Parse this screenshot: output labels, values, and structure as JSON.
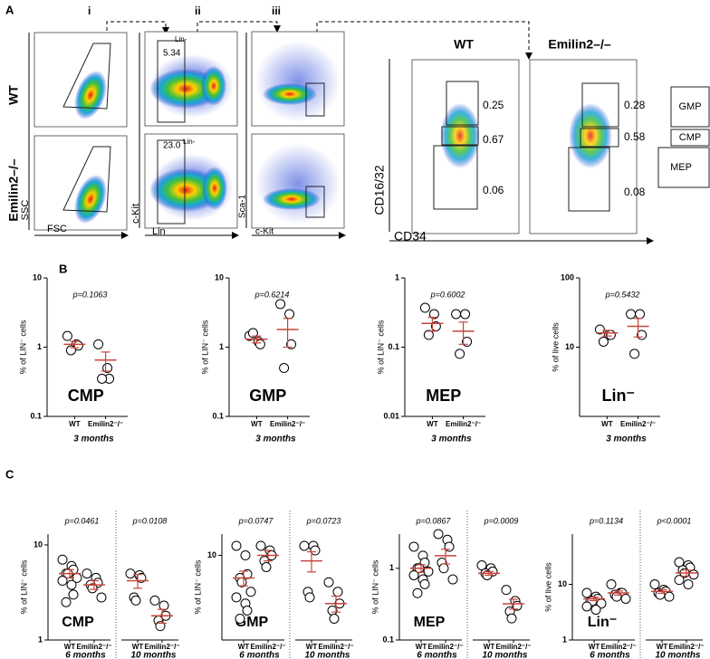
{
  "panel_a": {
    "label": "A",
    "steps": [
      "i",
      "ii",
      "iii"
    ],
    "rows": [
      "WT",
      "Emilin2–/–"
    ],
    "axes": {
      "ssc": "SSC",
      "fsc": "FSC",
      "ckit": "c-Kit",
      "lin": "Lin",
      "sca1": "Sca-1",
      "ckit2": "c-Kit",
      "cd1632": "CD16/32",
      "cd34": "CD34"
    },
    "lin_gate": [
      "Lin-",
      "Lin-"
    ],
    "lin_pct": [
      "5.34",
      "23.0"
    ],
    "columns": [
      "WT",
      "Emilin2–/–"
    ],
    "gates_wt": [
      "0.25",
      "0.67",
      "0.06"
    ],
    "gates_ko": [
      "0.28",
      "0.58",
      "0.08"
    ],
    "legend": [
      "GMP",
      "CMP",
      "MEP"
    ]
  },
  "panel_b_label": "B",
  "panel_c_label": "C",
  "chart_data": [
    {
      "type": "dot",
      "title": "CMP",
      "ylabel": "% of LIN⁻ cells",
      "log": true,
      "ylim": [
        0.1,
        10
      ],
      "yticks": [
        0.1,
        1,
        10
      ],
      "color": "#c8453b",
      "blocks": [
        {
          "p": "p=0.1063",
          "period": "3 months",
          "groups": [
            {
              "label": "WT",
              "values": [
                1.45,
                1.1,
                1.05,
                0.9
              ],
              "mean": 1.1,
              "sem": 0.12
            },
            {
              "label": "Emilin2⁻/⁻",
              "values": [
                1.1,
                0.5,
                0.35,
                0.35
              ],
              "mean": 0.65,
              "sem": 0.2
            }
          ]
        }
      ]
    },
    {
      "type": "dot",
      "title": "GMP",
      "ylabel": "% of LIN⁻ cells",
      "log": true,
      "ylim": [
        0.1,
        10
      ],
      "yticks": [
        0.1,
        1,
        10
      ],
      "color": "#c8453b",
      "blocks": [
        {
          "p": "p=0.6214",
          "period": "3 months",
          "groups": [
            {
              "label": "WT",
              "values": [
                1.45,
                1.2,
                1.1,
                1.6
              ],
              "mean": 1.3,
              "sem": 0.15
            },
            {
              "label": "Emilin2⁻/⁻",
              "values": [
                4.2,
                3,
                1.1,
                0.5
              ],
              "mean": 1.8,
              "sem": 0.8
            }
          ]
        }
      ]
    },
    {
      "type": "dot",
      "title": "MEP",
      "ylabel": "% of LIN⁻ cells",
      "log": true,
      "ylim": [
        0.01,
        1
      ],
      "yticks": [
        0.01,
        0.1,
        1
      ],
      "color": "#c8453b",
      "blocks": [
        {
          "p": "p=0.6002",
          "period": "3 months",
          "groups": [
            {
              "label": "WT",
              "values": [
                0.37,
                0.3,
                0.2,
                0.15
              ],
              "mean": 0.22,
              "sem": 0.05
            },
            {
              "label": "Emilin2⁻/⁻",
              "values": [
                0.3,
                0.3,
                0.12,
                0.08
              ],
              "mean": 0.17,
              "sem": 0.06
            }
          ]
        }
      ]
    },
    {
      "type": "dot",
      "title": "Lin⁻",
      "ylabel": "% of live cells",
      "log": true,
      "ylim": [
        1,
        100
      ],
      "yticks": [
        10,
        100
      ],
      "color": "#c8453b",
      "blocks": [
        {
          "p": "p=0.5432",
          "period": "3 months",
          "groups": [
            {
              "label": "WT",
              "values": [
                18,
                15,
                15,
                12
              ],
              "mean": 16,
              "sem": 1.5
            },
            {
              "label": "Emilin2⁻/⁻",
              "values": [
                30,
                30,
                15,
                8
              ],
              "mean": 20,
              "sem": 6
            }
          ]
        }
      ]
    },
    {
      "type": "dot",
      "title": "CMP",
      "ylabel": "% of LIN⁻ cells",
      "log": true,
      "ylim": [
        1,
        13
      ],
      "yticks": [
        1,
        10
      ],
      "color": "#c8453b",
      "blocks": [
        {
          "p": "p=0.0461",
          "period": "6 months",
          "groups": [
            {
              "label": "WT",
              "values": [
                7,
                6,
                5.5,
                5,
                5,
                4.5,
                4.2,
                3.8,
                3,
                2.5
              ],
              "mean": 5,
              "sem": 0.5
            },
            {
              "label": "Emilin2⁻/⁻",
              "values": [
                5,
                4.5,
                4,
                3.8,
                3.5,
                2.8
              ],
              "mean": 3.8,
              "sem": 0.4
            }
          ]
        },
        {
          "p": "p=0.0108",
          "period": "10 months",
          "groups": [
            {
              "label": "WT",
              "values": [
                5,
                4.8,
                4.5,
                2.8,
                2.6
              ],
              "mean": 4.2,
              "sem": 0.7
            },
            {
              "label": "Emilin2⁻/⁻",
              "values": [
                2.6,
                2.3,
                1.8,
                1.6,
                1.4
              ],
              "mean": 1.8,
              "sem": 0.3
            }
          ]
        }
      ]
    },
    {
      "type": "dot",
      "title": "GMP",
      "ylabel": "% of LIN⁻ cells",
      "log": true,
      "ylim": [
        2,
        15
      ],
      "yticks": [
        10
      ],
      "color": "#c8453b",
      "blocks": [
        {
          "p": "p=0.0747",
          "period": "6 months",
          "groups": [
            {
              "label": "WT",
              "values": [
                12,
                10,
                7,
                6.5,
                6,
                5,
                4.5,
                4,
                3.5,
                3
              ],
              "mean": 6.5,
              "sem": 0.9
            },
            {
              "label": "Emilin2⁻/⁻",
              "values": [
                12,
                11,
                10,
                9,
                8
              ],
              "mean": 10,
              "sem": 1
            }
          ]
        },
        {
          "p": "p=0.0723",
          "period": "10 months",
          "groups": [
            {
              "label": "WT",
              "values": [
                12,
                12,
                11,
                5,
                4.5
              ],
              "mean": 9,
              "sem": 1.7
            },
            {
              "label": "Emilin2⁻/⁻",
              "values": [
                6,
                5,
                4,
                3.5,
                3
              ],
              "mean": 4,
              "sem": 0.6
            }
          ]
        }
      ]
    },
    {
      "type": "dot",
      "title": "MEP",
      "ylabel": "% of LIN⁻ cells",
      "log": true,
      "ylim": [
        0.1,
        3
      ],
      "yticks": [
        0.1,
        1
      ],
      "color": "#c8453b",
      "blocks": [
        {
          "p": "p=0.0867",
          "period": "6 months",
          "groups": [
            {
              "label": "WT",
              "values": [
                2,
                1.5,
                1.2,
                1,
                1,
                0.9,
                0.8,
                0.7,
                0.6,
                0.45
              ],
              "mean": 1,
              "sem": 0.12
            },
            {
              "label": "Emilin2⁻/⁻",
              "values": [
                3,
                2.5,
                2,
                1.2,
                1,
                0.7
              ],
              "mean": 1.5,
              "sem": 0.35
            }
          ]
        },
        {
          "p": "p=0.0009",
          "period": "10 months",
          "groups": [
            {
              "label": "WT",
              "values": [
                1.1,
                1,
                0.9,
                0.85,
                0.8
              ],
              "mean": 0.85,
              "sem": 0.05
            },
            {
              "label": "Emilin2⁻/⁻",
              "values": [
                0.5,
                0.35,
                0.3,
                0.25,
                0.2
              ],
              "mean": 0.32,
              "sem": 0.05
            }
          ]
        }
      ]
    },
    {
      "type": "dot",
      "title": "Lin⁻",
      "ylabel": "% of live cells",
      "log": true,
      "ylim": [
        1,
        80
      ],
      "yticks": [
        1,
        10
      ],
      "color": "#c8453b",
      "blocks": [
        {
          "p": "p=0.1134",
          "period": "6 months",
          "groups": [
            {
              "label": "WT",
              "values": [
                7,
                6,
                5.5,
                5,
                5,
                4.5,
                4,
                3.5
              ],
              "mean": 5.5,
              "sem": 0.4
            },
            {
              "label": "Emilin2⁻/⁻",
              "values": [
                10,
                7,
                7,
                6.5,
                6,
                5.5
              ],
              "mean": 7,
              "sem": 0.6
            }
          ]
        },
        {
          "p": "p<0.0001",
          "period": "10 months",
          "groups": [
            {
              "label": "WT",
              "values": [
                10,
                8,
                7.5,
                7,
                6.5,
                6
              ],
              "mean": 7.5,
              "sem": 0.6
            },
            {
              "label": "Emilin2⁻/⁻",
              "values": [
                25,
                22,
                20,
                18,
                16,
                15,
                12,
                10
              ],
              "mean": 16,
              "sem": 2
            }
          ]
        }
      ]
    }
  ]
}
